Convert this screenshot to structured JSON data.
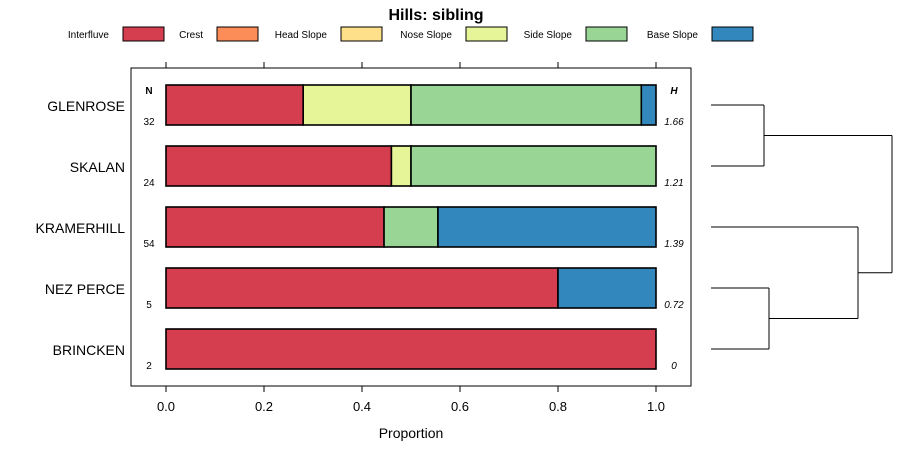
{
  "chart_data": {
    "type": "bar",
    "orientation": "horizontal",
    "stacked": true,
    "title": "Hills: sibling",
    "xlabel": "Proportion",
    "xlim": [
      0,
      1
    ],
    "x_ticks": [
      "0.0",
      "0.2",
      "0.4",
      "0.6",
      "0.8",
      "1.0"
    ],
    "legend_position": "top",
    "n_header": "N",
    "h_header": "H",
    "series": [
      {
        "name": "Interfluve",
        "color": "#d53e4f"
      },
      {
        "name": "Crest",
        "color": "#fc8d59"
      },
      {
        "name": "Head Slope",
        "color": "#fee08b"
      },
      {
        "name": "Nose Slope",
        "color": "#e6f598"
      },
      {
        "name": "Side Slope",
        "color": "#99d594"
      },
      {
        "name": "Base Slope",
        "color": "#3288bd"
      }
    ],
    "categories": [
      {
        "label": "GLENROSE",
        "n": "32",
        "h": "1.66",
        "values": [
          0.28,
          0.0,
          0.0,
          0.22,
          0.47,
          0.03
        ]
      },
      {
        "label": "SKALAN",
        "n": "24",
        "h": "1.21",
        "values": [
          0.46,
          0.0,
          0.0,
          0.04,
          0.5,
          0.0
        ]
      },
      {
        "label": "KRAMERHILL",
        "n": "54",
        "h": "1.39",
        "values": [
          0.445,
          0.0,
          0.0,
          0.0,
          0.11,
          0.445
        ]
      },
      {
        "label": "NEZ PERCE",
        "n": "5",
        "h": "0.72",
        "values": [
          0.8,
          0.0,
          0.0,
          0.0,
          0.0,
          0.2
        ]
      },
      {
        "label": "BRINCKEN",
        "n": "2",
        "h": "0",
        "values": [
          1.0,
          0.0,
          0.0,
          0.0,
          0.0,
          0.0
        ]
      }
    ],
    "dendrogram": {
      "type": "hierarchical clustering",
      "merge_order": [
        [
          "GLENROSE",
          "SKALAN"
        ],
        [
          "NEZ PERCE",
          "BRINCKEN"
        ],
        [
          "KRAMERHILL",
          "NEZ PERCE + BRINCKEN"
        ],
        [
          "GLENROSE + SKALAN",
          "KRAMERHILL + NEZ PERCE + BRINCKEN"
        ]
      ]
    }
  }
}
